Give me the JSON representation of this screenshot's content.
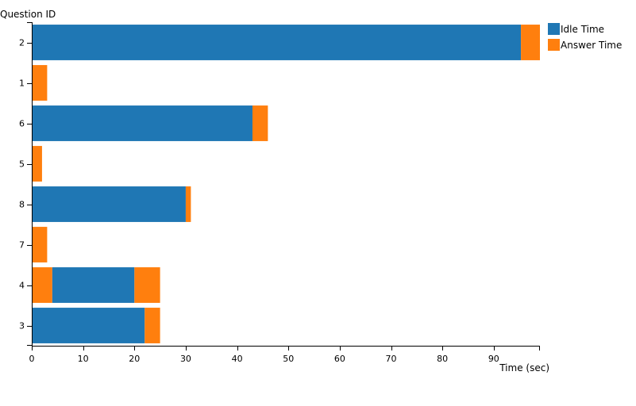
{
  "chart_data": {
    "type": "bar",
    "orientation": "horizontal",
    "stacked": true,
    "xlabel": "Time (sec)",
    "ylabel": "Question ID",
    "xlim": [
      0,
      99
    ],
    "x_ticks": [
      0,
      10,
      20,
      30,
      40,
      50,
      60,
      70,
      80,
      90
    ],
    "categories": [
      "2",
      "1",
      "6",
      "5",
      "8",
      "7",
      "4",
      "3"
    ],
    "legend": {
      "position": "top-right"
    },
    "series": [
      {
        "name": "Idle Time",
        "color": "#1f77b4"
      },
      {
        "name": "Answer Time",
        "color": "#ff7f0e"
      }
    ],
    "segments": [
      {
        "category": "2",
        "series": "Idle Time",
        "start": 0,
        "end": 95.3
      },
      {
        "category": "2",
        "series": "Answer Time",
        "start": 95.3,
        "end": 99
      },
      {
        "category": "1",
        "series": "Answer Time",
        "start": 0,
        "end": 3
      },
      {
        "category": "6",
        "series": "Idle Time",
        "start": 0,
        "end": 43
      },
      {
        "category": "6",
        "series": "Answer Time",
        "start": 43,
        "end": 46
      },
      {
        "category": "5",
        "series": "Answer Time",
        "start": 0,
        "end": 2
      },
      {
        "category": "8",
        "series": "Idle Time",
        "start": 0,
        "end": 30
      },
      {
        "category": "8",
        "series": "Answer Time",
        "start": 30,
        "end": 31
      },
      {
        "category": "7",
        "series": "Answer Time",
        "start": 0,
        "end": 3
      },
      {
        "category": "4",
        "series": "Answer Time",
        "start": 0,
        "end": 4
      },
      {
        "category": "4",
        "series": "Idle Time",
        "start": 4,
        "end": 20
      },
      {
        "category": "4",
        "series": "Answer Time",
        "start": 20,
        "end": 25
      },
      {
        "category": "3",
        "series": "Idle Time",
        "start": 0,
        "end": 22
      },
      {
        "category": "3",
        "series": "Answer Time",
        "start": 22,
        "end": 25
      }
    ]
  }
}
